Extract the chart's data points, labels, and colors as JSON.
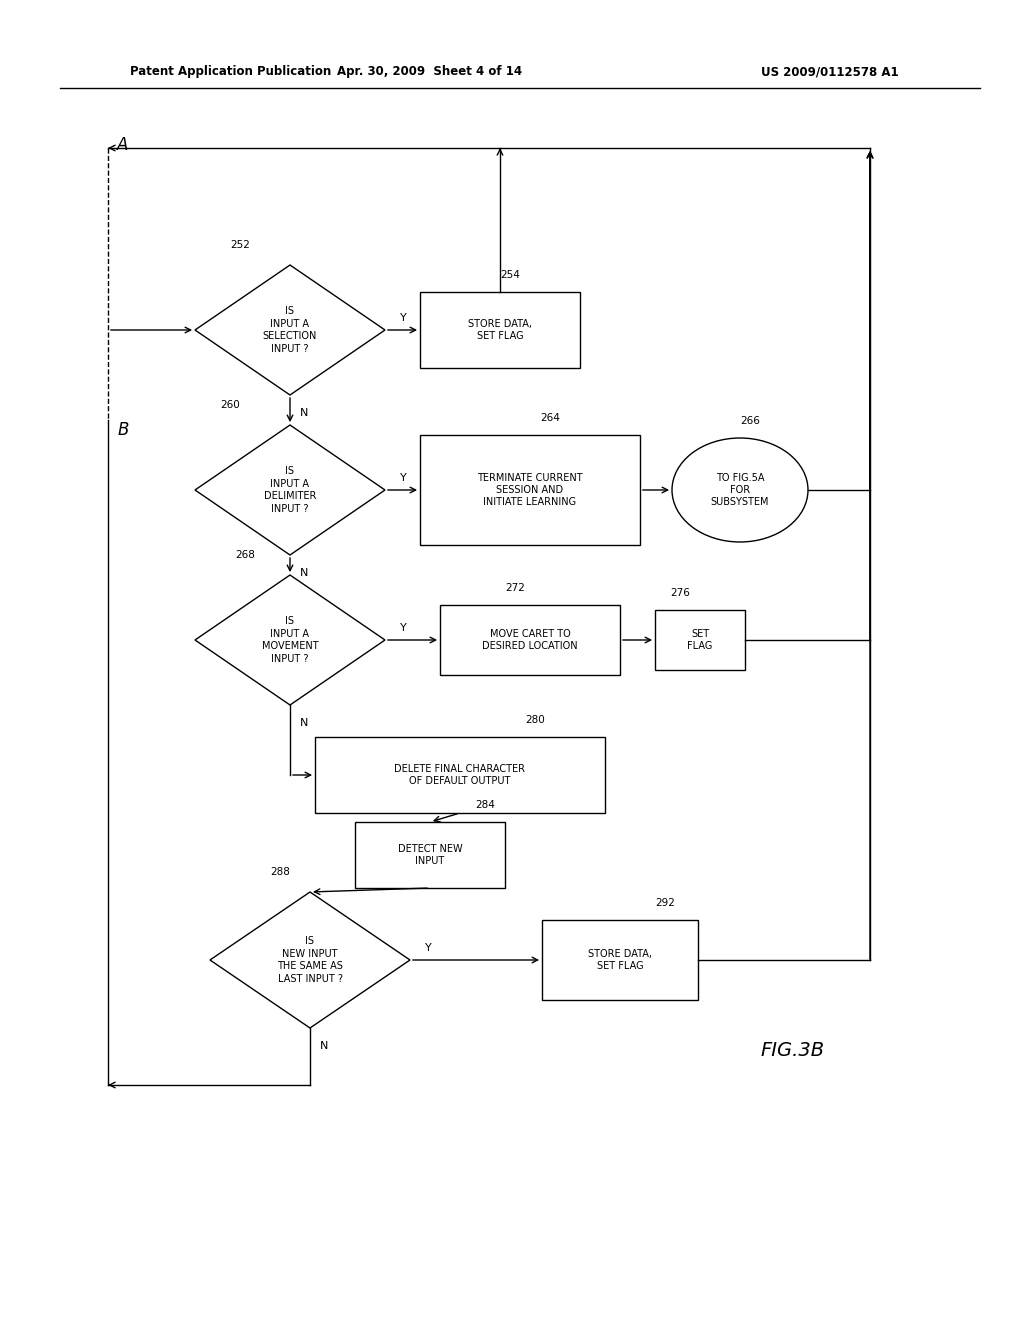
{
  "title_left": "Patent Application Publication",
  "title_mid": "Apr. 30, 2009  Sheet 4 of 14",
  "title_right": "US 2009/0112578 A1",
  "fig_label": "FIG.3B",
  "background": "#ffffff",
  "line_color": "#000000"
}
